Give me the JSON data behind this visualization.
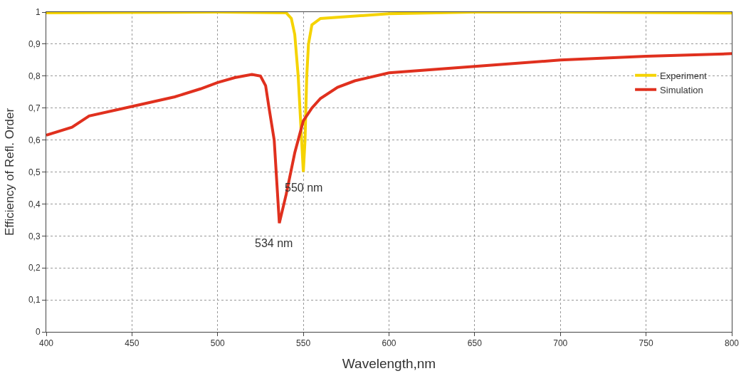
{
  "chart_data": {
    "type": "line",
    "xlabel": "Wavelength,nm",
    "ylabel": "Efficiency of Refl. Order",
    "xlim": [
      400,
      800
    ],
    "xticks": [
      400,
      450,
      500,
      550,
      600,
      650,
      700,
      750,
      800
    ],
    "ylim": [
      0,
      1
    ],
    "yticks": [
      0,
      {
        "value": 0.1,
        "label": "0,1"
      },
      {
        "value": 0.2,
        "label": "0,2"
      },
      {
        "value": 0.3,
        "label": "0,3"
      },
      {
        "value": 0.4,
        "label": "0,4"
      },
      {
        "value": 0.5,
        "label": "0,5"
      },
      {
        "value": 0.6,
        "label": "0,6"
      },
      {
        "value": 0.7,
        "label": "0,7"
      },
      {
        "value": 0.8,
        "label": "0,8"
      },
      {
        "value": 0.9,
        "label": "0,9"
      },
      1
    ],
    "grid": true,
    "legend": "right",
    "marker": "none",
    "line_style": "solid",
    "series": [
      {
        "name": "Experiment",
        "color": "#f5d300",
        "x": [
          400,
          450,
          500,
          540,
          543,
          545,
          547,
          549,
          550,
          551,
          552,
          553,
          555,
          560,
          600,
          650,
          700,
          800
        ],
        "values": [
          0.998,
          0.999,
          1.0,
          0.998,
          0.98,
          0.93,
          0.8,
          0.6,
          0.5,
          0.6,
          0.8,
          0.9,
          0.96,
          0.98,
          0.995,
          1.0,
          1.0,
          0.997
        ]
      },
      {
        "name": "Simulation",
        "color": "#e0301e",
        "x": [
          400,
          415,
          425,
          450,
          475,
          490,
          500,
          510,
          520,
          525,
          528,
          530,
          533,
          536,
          540,
          545,
          550,
          555,
          560,
          570,
          580,
          600,
          650,
          700,
          750,
          800
        ],
        "values": [
          0.615,
          0.64,
          0.675,
          0.705,
          0.735,
          0.76,
          0.78,
          0.795,
          0.805,
          0.8,
          0.77,
          0.7,
          0.6,
          0.34,
          0.43,
          0.56,
          0.66,
          0.7,
          0.73,
          0.765,
          0.785,
          0.81,
          0.83,
          0.85,
          0.862,
          0.87
        ]
      }
    ],
    "annotations": [
      {
        "text": "550 nm",
        "x": 550,
        "y": 0.5
      },
      {
        "text": "534 nm",
        "x": 536,
        "y": 0.34
      }
    ]
  }
}
